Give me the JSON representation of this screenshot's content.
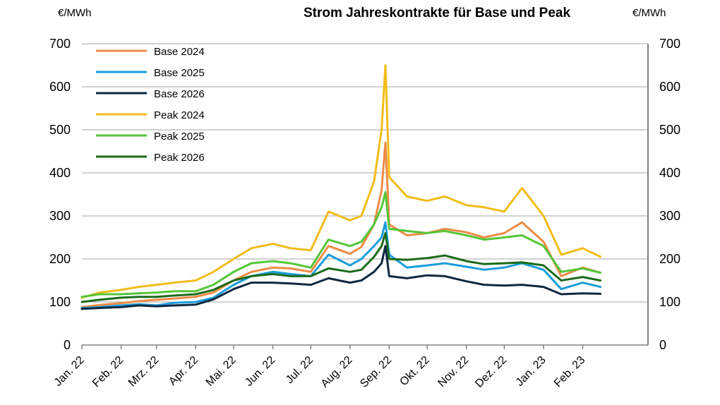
{
  "chart_data": {
    "type": "line",
    "title": "Strom Jahreskontrakte für Base und Peak",
    "ylabel_left": "€/MWh",
    "ylabel_right": "€/MWh",
    "ylim": [
      0,
      700
    ],
    "yticks": [
      0,
      100,
      200,
      300,
      400,
      500,
      600,
      700
    ],
    "grid": true,
    "legend_position": "top-left",
    "x_tick_labels": [
      "Jan. 22",
      "Feb. 22",
      "Mrz. 22",
      "Apr. 22",
      "Mai. 22",
      "Jun. 22",
      "Jul. 22",
      "Aug. 22",
      "Sep. 22",
      "Okt. 22",
      "Nov. 22",
      "Dez. 22",
      "Jan. 23",
      "Feb. 23"
    ],
    "x": [
      "2022-01-01",
      "2022-01-15",
      "2022-02-01",
      "2022-02-15",
      "2022-03-01",
      "2022-03-15",
      "2022-04-01",
      "2022-04-15",
      "2022-05-01",
      "2022-05-15",
      "2022-06-01",
      "2022-06-15",
      "2022-07-01",
      "2022-07-15",
      "2022-08-01",
      "2022-08-10",
      "2022-08-20",
      "2022-08-26",
      "2022-08-29",
      "2022-09-01",
      "2022-09-15",
      "2022-10-01",
      "2022-10-15",
      "2022-11-01",
      "2022-11-15",
      "2022-12-01",
      "2022-12-15",
      "2023-01-01",
      "2023-01-15",
      "2023-02-01",
      "2023-02-15"
    ],
    "series": [
      {
        "name": "Base 2024",
        "color": "#ED8B45",
        "values": [
          88,
          93,
          97,
          102,
          105,
          108,
          112,
          122,
          150,
          170,
          180,
          178,
          170,
          230,
          212,
          228,
          280,
          360,
          470,
          280,
          255,
          260,
          270,
          262,
          250,
          260,
          285,
          240,
          160,
          180,
          168
        ]
      },
      {
        "name": "Base 2025",
        "color": "#1B9DDB",
        "values": [
          86,
          88,
          92,
          95,
          92,
          98,
          100,
          110,
          140,
          160,
          170,
          165,
          160,
          210,
          185,
          200,
          230,
          250,
          285,
          210,
          180,
          185,
          190,
          182,
          175,
          180,
          190,
          175,
          130,
          145,
          135
        ]
      },
      {
        "name": "Base 2026",
        "color": "#0E2841",
        "values": [
          84,
          86,
          88,
          92,
          90,
          92,
          94,
          106,
          130,
          145,
          145,
          143,
          140,
          155,
          145,
          150,
          170,
          190,
          230,
          160,
          155,
          162,
          160,
          148,
          140,
          138,
          140,
          135,
          118,
          120,
          119
        ]
      },
      {
        "name": "Peak 2024",
        "color": "#F2BC19",
        "values": [
          110,
          122,
          128,
          135,
          140,
          145,
          150,
          170,
          200,
          225,
          235,
          225,
          220,
          310,
          290,
          300,
          380,
          500,
          650,
          390,
          345,
          335,
          345,
          325,
          320,
          310,
          365,
          300,
          210,
          225,
          205
        ]
      },
      {
        "name": "Peak 2025",
        "color": "#55C638",
        "values": [
          112,
          118,
          118,
          120,
          122,
          125,
          125,
          140,
          170,
          190,
          195,
          190,
          180,
          245,
          230,
          240,
          280,
          320,
          355,
          270,
          265,
          260,
          265,
          255,
          245,
          250,
          255,
          230,
          170,
          178,
          168
        ]
      },
      {
        "name": "Peak 2026",
        "color": "#1B6B1B",
        "values": [
          100,
          105,
          110,
          112,
          112,
          115,
          118,
          128,
          150,
          160,
          165,
          160,
          160,
          178,
          170,
          175,
          205,
          230,
          260,
          200,
          198,
          202,
          208,
          195,
          188,
          190,
          192,
          185,
          150,
          158,
          150
        ]
      }
    ]
  }
}
